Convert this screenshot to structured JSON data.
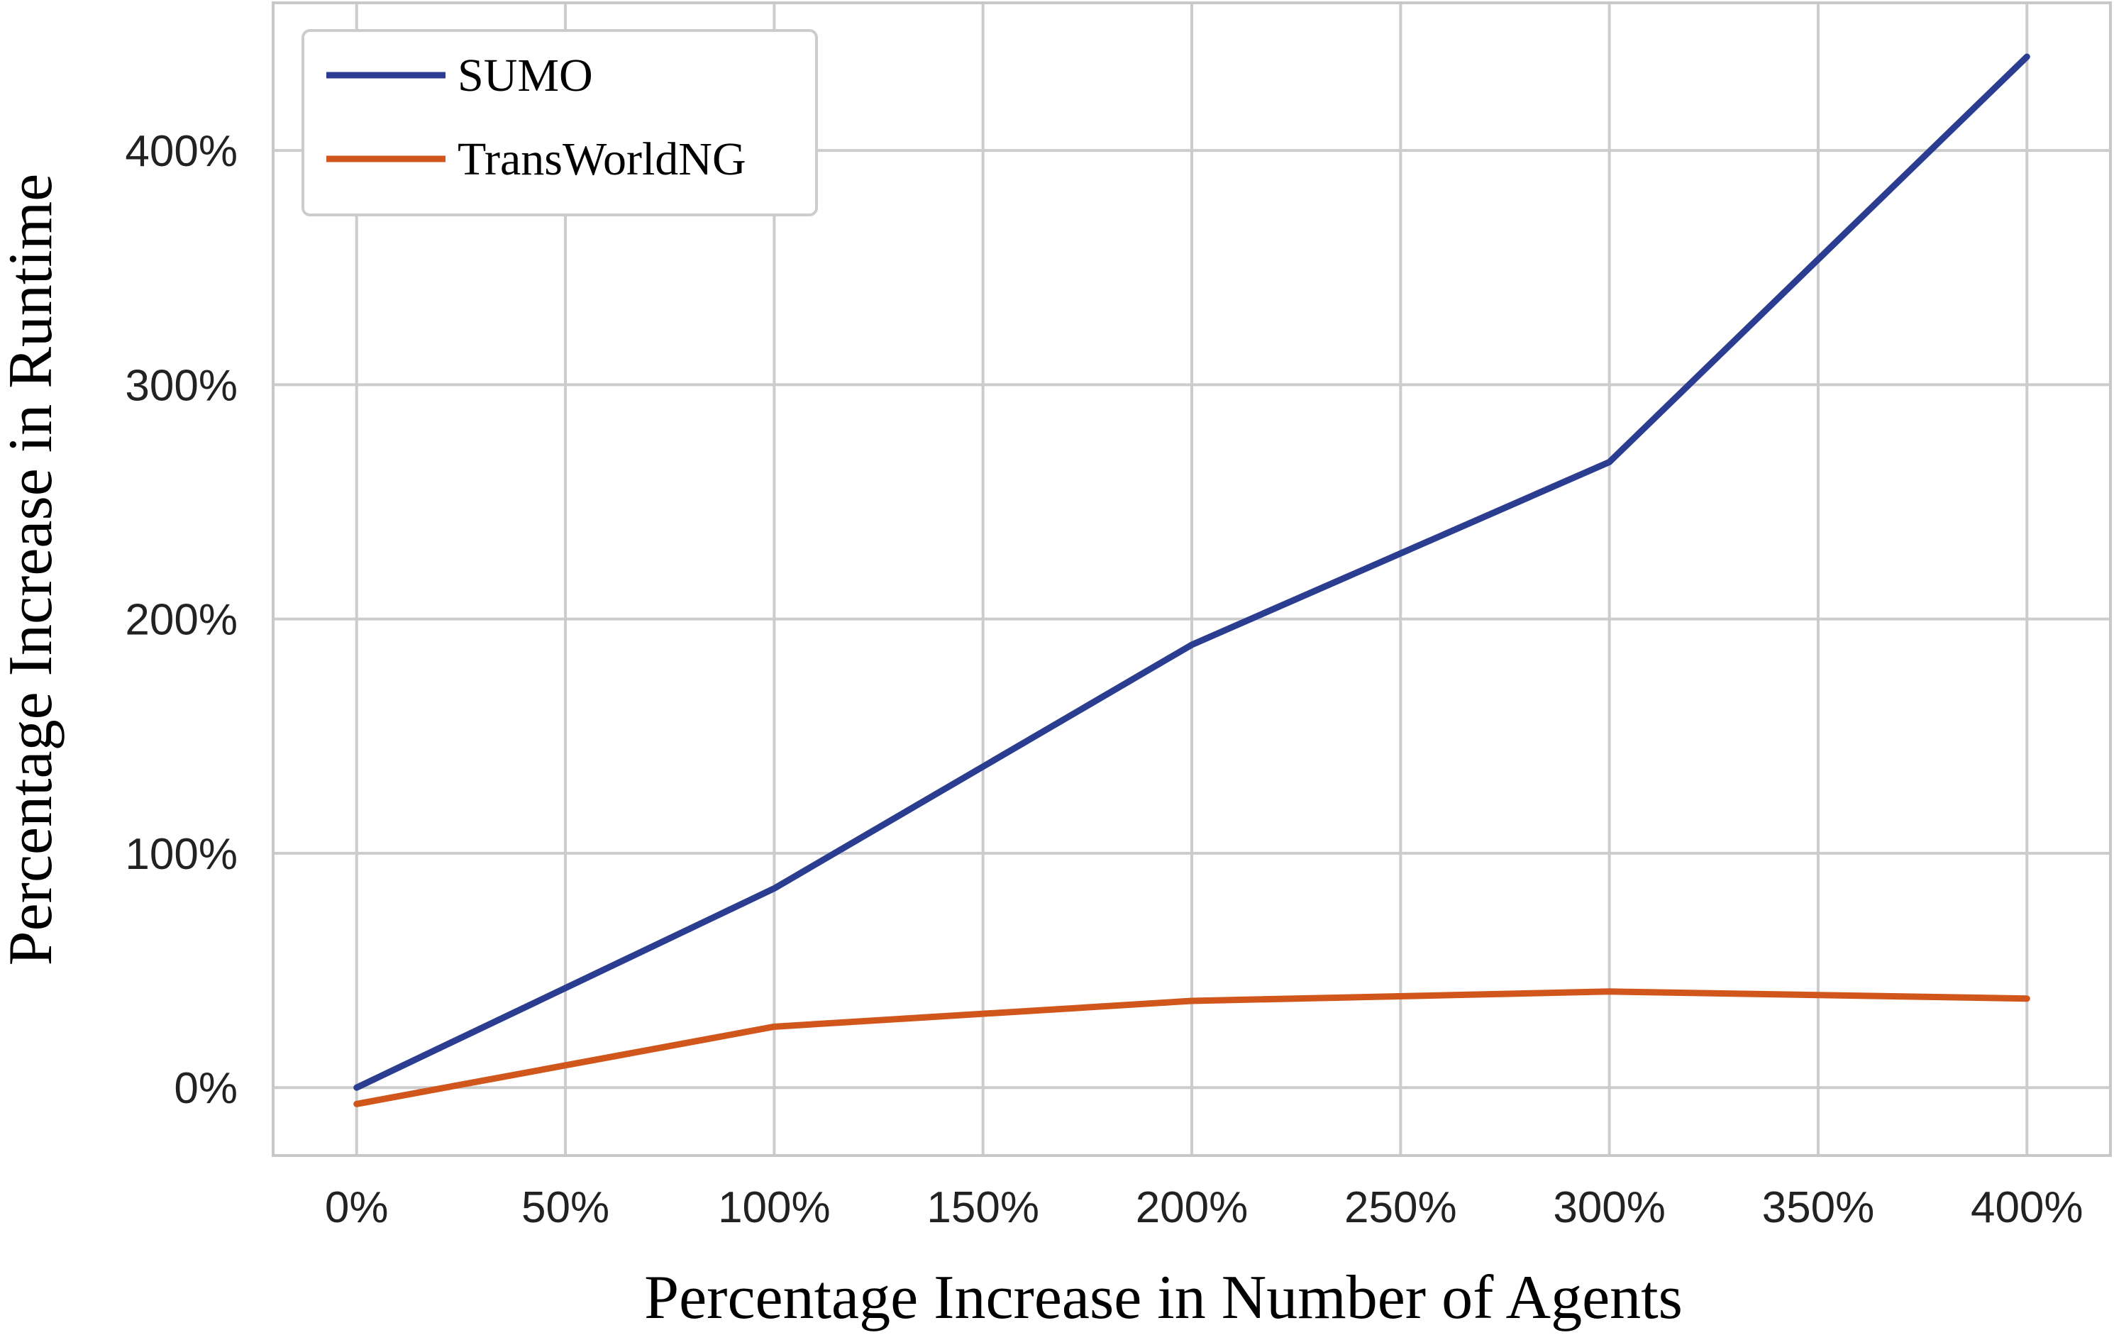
{
  "chart_data": {
    "type": "line",
    "x": [
      0,
      100,
      200,
      300,
      400
    ],
    "series": [
      {
        "name": "SUMO",
        "color": "#2b3d91",
        "values": [
          0,
          85,
          189,
          267,
          440
        ]
      },
      {
        "name": "TransWorldNG",
        "color": "#d1561c",
        "values": [
          -7,
          26,
          37,
          41,
          38
        ]
      }
    ],
    "xticks": [
      0,
      50,
      100,
      150,
      200,
      250,
      300,
      350,
      400
    ],
    "xtick_labels": [
      "0%",
      "50%",
      "100%",
      "150%",
      "200%",
      "250%",
      "300%",
      "350%",
      "400%"
    ],
    "yticks": [
      0,
      100,
      200,
      300,
      400
    ],
    "ytick_labels": [
      "0%",
      "100%",
      "200%",
      "300%",
      "400%"
    ],
    "xlim": [
      -20,
      420
    ],
    "ylim": [
      -29,
      463
    ],
    "xlabel": "Percentage Increase in Number of Agents",
    "ylabel": "Percentage Increase in Runtime",
    "grid": true,
    "legend_position": "top-left"
  }
}
